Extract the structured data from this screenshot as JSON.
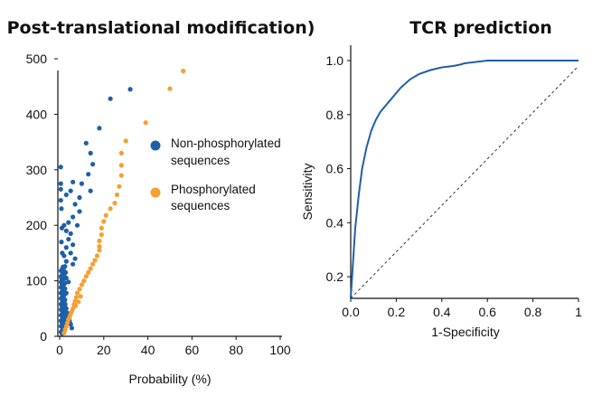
{
  "chart_data": [
    {
      "type": "scatter",
      "title": "Post-translational modification)",
      "xlabel": "Probability (%)",
      "ylabel": "",
      "xlim": [
        0,
        100
      ],
      "ylim": [
        0,
        500
      ],
      "xticks": [
        "0",
        "20",
        "40",
        "60",
        "80",
        "100"
      ],
      "yticks": [
        "0",
        "100",
        "200",
        "300",
        "400",
        "500"
      ],
      "legend": {
        "placement": "right"
      },
      "series": [
        {
          "name": "Non-phosphorylated\nsequences",
          "legend_lines": [
            "Non-phosphorylated",
            "sequences"
          ],
          "color": "#1f5fa8",
          "points": [
            [
              32,
              445
            ],
            [
              23,
              428
            ],
            [
              18,
              375
            ],
            [
              12,
              348
            ],
            [
              14,
              330
            ],
            [
              15,
              310
            ],
            [
              13,
              292
            ],
            [
              10,
              275
            ],
            [
              6,
              278
            ],
            [
              5,
              262
            ],
            [
              14,
              262
            ],
            [
              9,
              250
            ],
            [
              3,
              255
            ],
            [
              7,
              238
            ],
            [
              9,
              225
            ],
            [
              6,
              215
            ],
            [
              4,
              205
            ],
            [
              8,
              200
            ],
            [
              2,
              200
            ],
            [
              3,
              190
            ],
            [
              5,
              185
            ],
            [
              4,
              175
            ],
            [
              6,
              165
            ],
            [
              3,
              160
            ],
            [
              5,
              150
            ],
            [
              7,
              140
            ],
            [
              2,
              145
            ],
            [
              3,
              135
            ],
            [
              6,
              130
            ],
            [
              1,
              120
            ],
            [
              2,
              110
            ],
            [
              3,
              105
            ],
            [
              4,
              98
            ],
            [
              1,
              92
            ],
            [
              2,
              85
            ],
            [
              3,
              78
            ],
            [
              1,
              70
            ],
            [
              2,
              62
            ],
            [
              1,
              55
            ],
            [
              2,
              48
            ],
            [
              1,
              40
            ],
            [
              2,
              32
            ],
            [
              1,
              25
            ],
            [
              1,
              18
            ],
            [
              2,
              12
            ],
            [
              1,
              5
            ],
            [
              0.5,
              305
            ],
            [
              0.5,
              275
            ],
            [
              0.5,
              265
            ],
            [
              0.5,
              245
            ],
            [
              0.8,
              230
            ],
            [
              1,
              195
            ],
            [
              0.8,
              170
            ],
            [
              1.2,
              150
            ],
            [
              1.5,
              125
            ],
            [
              0.8,
              105
            ],
            [
              1.3,
              80
            ],
            [
              1.8,
              68
            ],
            [
              2.5,
              58
            ],
            [
              3,
              50
            ],
            [
              3.5,
              42
            ],
            [
              4,
              35
            ],
            [
              4.5,
              28
            ],
            [
              5,
              22
            ],
            [
              5.5,
              15
            ],
            [
              2.2,
              95
            ],
            [
              2.7,
              115
            ]
          ]
        },
        {
          "name": "Phosphorylated\nsequences",
          "legend_lines": [
            "Phosphorylated",
            "sequences"
          ],
          "color": "#f5a030",
          "points": [
            [
              56,
              478
            ],
            [
              50,
              446
            ],
            [
              39,
              385
            ],
            [
              30,
              352
            ],
            [
              28,
              330
            ],
            [
              28,
              308
            ],
            [
              28,
              290
            ],
            [
              27,
              270
            ],
            [
              26,
              255
            ],
            [
              25,
              240
            ],
            [
              23,
              230
            ],
            [
              21,
              218
            ],
            [
              20,
              207
            ],
            [
              19,
              195
            ],
            [
              19,
              183
            ],
            [
              18,
              172
            ],
            [
              18,
              162
            ],
            [
              18,
              155
            ],
            [
              17,
              145
            ],
            [
              16,
              137
            ],
            [
              15,
              130
            ],
            [
              14,
              122
            ],
            [
              13,
              115
            ],
            [
              12,
              108
            ],
            [
              11,
              100
            ],
            [
              10,
              93
            ],
            [
              9,
              85
            ],
            [
              8,
              78
            ],
            [
              7.5,
              70
            ],
            [
              7,
              63
            ],
            [
              6.5,
              57
            ],
            [
              6,
              50
            ],
            [
              5.5,
              45
            ],
            [
              5,
              40
            ],
            [
              4.5,
              35
            ],
            [
              4,
              30
            ],
            [
              3.5,
              24
            ],
            [
              3,
              18
            ],
            [
              2.5,
              12
            ],
            [
              2,
              6
            ],
            [
              9.5,
              72
            ],
            [
              8.5,
              62
            ],
            [
              7.2,
              55
            ]
          ]
        }
      ]
    },
    {
      "type": "line",
      "title": "TCR prediction",
      "xlabel": "1-Specificity",
      "ylabel": "Sensitivity",
      "xlim": [
        0,
        1
      ],
      "ylim": [
        0.1,
        1.05
      ],
      "xticks": [
        "0.0",
        "0.2",
        "0.4",
        "0.6",
        "0.8",
        "1"
      ],
      "yticks": [
        "0.2",
        "0.4",
        "0.6",
        "0.8",
        "1.0"
      ],
      "series": [
        {
          "color": "#1f5fa8",
          "x": [
            0.0,
            0.01,
            0.02,
            0.035,
            0.05,
            0.07,
            0.09,
            0.11,
            0.13,
            0.16,
            0.19,
            0.22,
            0.26,
            0.3,
            0.35,
            0.4,
            0.45,
            0.48,
            0.5,
            0.55,
            0.6,
            0.7,
            0.8,
            0.9,
            1.0
          ],
          "y": [
            0.12,
            0.25,
            0.38,
            0.5,
            0.6,
            0.68,
            0.74,
            0.78,
            0.81,
            0.84,
            0.87,
            0.9,
            0.93,
            0.95,
            0.965,
            0.975,
            0.98,
            0.985,
            0.99,
            0.995,
            1.0,
            1.0,
            1.0,
            1.0,
            1.0
          ]
        },
        {
          "dashed": true,
          "color": "#333333",
          "x": [
            0,
            1
          ],
          "y": [
            0.12,
            0.98
          ]
        }
      ]
    }
  ]
}
